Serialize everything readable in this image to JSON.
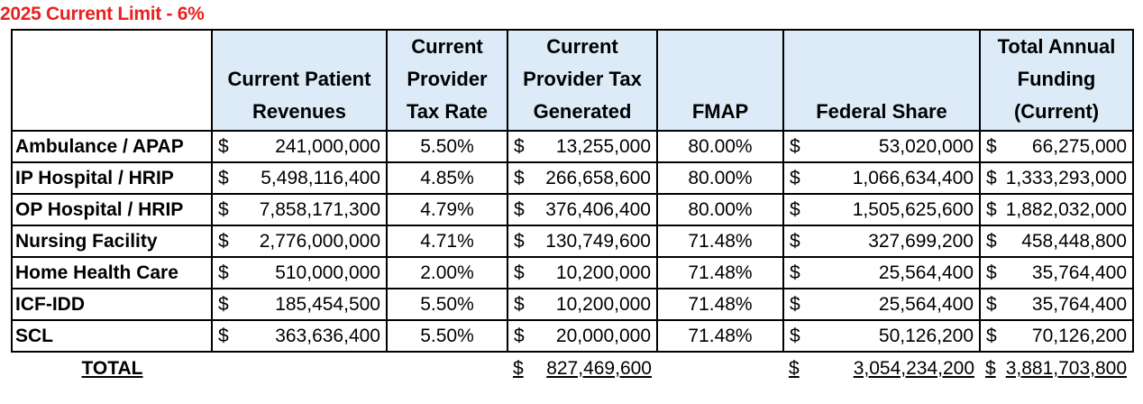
{
  "title": "2025 Current Limit - 6%",
  "headers": [
    "",
    "Current Patient\nRevenues",
    "Current\nProvider\nTax Rate",
    "Current\nProvider Tax\nGenerated",
    "FMAP",
    "Federal Share",
    "Total Annual\nFunding\n(Current)"
  ],
  "rows": [
    {
      "label": "Ambulance / APAP",
      "revenues": "241,000,000",
      "rate": "5.50%",
      "generated": "13,255,000",
      "fmap": "80.00%",
      "federal": "53,020,000",
      "total": "66,275,000"
    },
    {
      "label": "IP Hospital / HRIP",
      "revenues": "5,498,116,400",
      "rate": "4.85%",
      "generated": "266,658,600",
      "fmap": "80.00%",
      "federal": "1,066,634,400",
      "total": "1,333,293,000"
    },
    {
      "label": "OP Hospital / HRIP",
      "revenues": "7,858,171,300",
      "rate": "4.79%",
      "generated": "376,406,400",
      "fmap": "80.00%",
      "federal": "1,505,625,600",
      "total": "1,882,032,000"
    },
    {
      "label": "Nursing Facility",
      "revenues": "2,776,000,000",
      "rate": "4.71%",
      "generated": "130,749,600",
      "fmap": "71.48%",
      "federal": "327,699,200",
      "total": "458,448,800"
    },
    {
      "label": "Home Health Care",
      "revenues": "510,000,000",
      "rate": "2.00%",
      "generated": "10,200,000",
      "fmap": "71.48%",
      "federal": "25,564,400",
      "total": "35,764,400"
    },
    {
      "label": "ICF-IDD",
      "revenues": "185,454,500",
      "rate": "5.50%",
      "generated": "10,200,000",
      "fmap": "71.48%",
      "federal": "25,564,400",
      "total": "35,764,400"
    },
    {
      "label": "SCL",
      "revenues": "363,636,400",
      "rate": "5.50%",
      "generated": "20,000,000",
      "fmap": "71.48%",
      "federal": "50,126,200",
      "total": "70,126,200"
    }
  ],
  "currency_symbol": "$",
  "totals": {
    "label": "TOTAL",
    "generated": "827,469,600",
    "federal": "3,054,234,200",
    "total": "3,881,703,800"
  }
}
